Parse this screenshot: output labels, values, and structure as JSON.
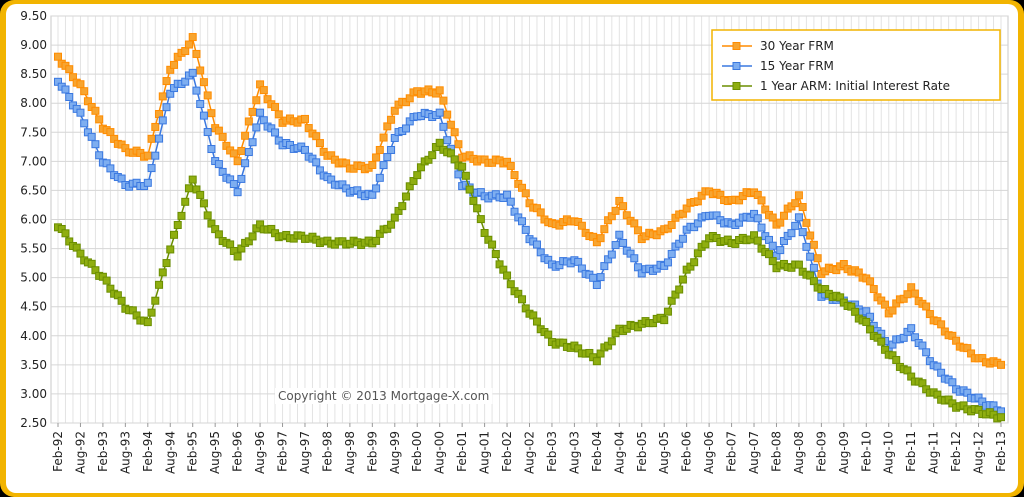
{
  "chart_data": {
    "type": "line",
    "title": "",
    "xlabel": "",
    "ylabel": "",
    "ylim": [
      2.5,
      9.5
    ],
    "yticks": [
      "9.50",
      "9.00",
      "8.50",
      "8.00",
      "7.50",
      "7.00",
      "6.50",
      "6.00",
      "5.50",
      "5.00",
      "4.50",
      "4.00",
      "3.50",
      "3.00",
      "2.50"
    ],
    "categories": [
      "Feb-92",
      "Aug-92",
      "Feb-93",
      "Aug-93",
      "Feb-94",
      "Aug-94",
      "Feb-95",
      "Aug-95",
      "Feb-96",
      "Aug-96",
      "Feb-97",
      "Aug-97",
      "Feb-98",
      "Aug-98",
      "Feb-99",
      "Aug-99",
      "Feb-00",
      "Aug-00",
      "Feb-01",
      "Aug-01",
      "Feb-02",
      "Aug-02",
      "Feb-03",
      "Aug-03",
      "Feb-04",
      "Aug-04",
      "Feb-05",
      "Aug-05",
      "Feb-06",
      "Aug-06",
      "Feb-07",
      "Aug-07",
      "Feb-08",
      "Aug-08",
      "Feb-09",
      "Aug-09",
      "Feb-10",
      "Aug-10",
      "Feb-11",
      "Aug-11",
      "Feb-12",
      "Aug-12",
      "Feb-13"
    ],
    "grid": true,
    "legend_position": "top-right",
    "annotation": "Copyright © 2013 Mortgage-X.com",
    "series": [
      {
        "name": "30 Year FRM",
        "color": "#ff8c00",
        "marker_fill": "#f7a531",
        "values": [
          8.8,
          8.3,
          7.6,
          7.2,
          7.1,
          8.6,
          9.1,
          7.6,
          7.0,
          8.3,
          7.7,
          7.7,
          7.1,
          6.9,
          6.9,
          7.9,
          8.2,
          8.2,
          7.1,
          7.0,
          7.0,
          6.3,
          5.9,
          6.0,
          5.6,
          6.3,
          5.7,
          5.8,
          6.2,
          6.5,
          6.3,
          6.5,
          5.9,
          6.4,
          5.1,
          5.2,
          5.0,
          4.4,
          4.8,
          4.3,
          3.9,
          3.6,
          3.5
        ]
      },
      {
        "name": "15 Year FRM",
        "color": "#3a78e0",
        "marker_fill": "#7eaef0",
        "values": [
          8.4,
          7.8,
          7.0,
          6.6,
          6.6,
          8.2,
          8.5,
          7.0,
          6.5,
          7.8,
          7.3,
          7.2,
          6.7,
          6.5,
          6.4,
          7.4,
          7.8,
          7.8,
          6.6,
          6.4,
          6.4,
          5.7,
          5.2,
          5.3,
          4.9,
          5.7,
          5.1,
          5.2,
          5.8,
          6.1,
          5.9,
          6.1,
          5.4,
          6.0,
          4.7,
          4.6,
          4.4,
          3.8,
          4.1,
          3.5,
          3.1,
          2.9,
          2.7
        ]
      },
      {
        "name": "1 Year ARM: Initial Interest Rate",
        "color": "#6b8e00",
        "marker_fill": "#8fae10",
        "values": [
          5.9,
          5.4,
          5.0,
          4.5,
          4.2,
          5.5,
          6.7,
          5.8,
          5.4,
          5.9,
          5.7,
          5.7,
          5.6,
          5.6,
          5.6,
          6.0,
          6.8,
          7.3,
          6.9,
          5.8,
          5.0,
          4.4,
          3.9,
          3.8,
          3.6,
          4.1,
          4.2,
          4.3,
          5.1,
          5.7,
          5.6,
          5.7,
          5.2,
          5.2,
          4.8,
          4.6,
          4.2,
          3.7,
          3.3,
          3.0,
          2.8,
          2.7,
          2.6
        ]
      }
    ]
  }
}
